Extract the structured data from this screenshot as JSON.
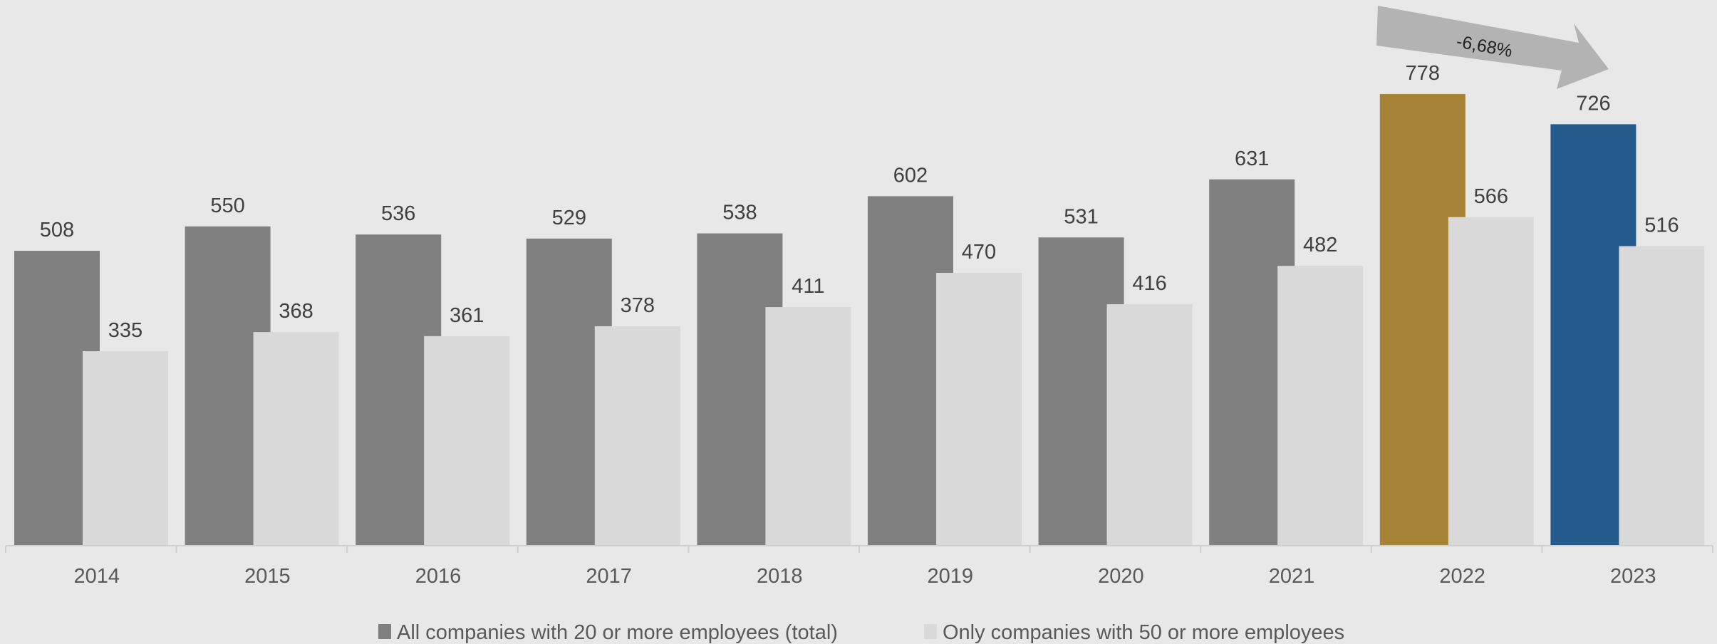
{
  "chart_data": {
    "type": "bar",
    "title": "",
    "xlabel": "",
    "ylabel": "",
    "ylim": [
      0,
      940
    ],
    "grid": false,
    "legend_position": "bottom",
    "categories": [
      "2014",
      "2015",
      "2016",
      "2017",
      "2018",
      "2019",
      "2020",
      "2021",
      "2022",
      "2023"
    ],
    "series": [
      {
        "name": "All companies with 20 or more employees (total)",
        "values": [
          508,
          550,
          536,
          529,
          538,
          602,
          531,
          631,
          778,
          726
        ],
        "labels": [
          "508",
          "550",
          "536",
          "529",
          "538",
          "602",
          "531",
          "631",
          "778",
          "726"
        ],
        "color": "#808080",
        "highlight_colors": {
          "2022": "#a58236",
          "2023": "#245a8c"
        }
      },
      {
        "name": "Only companies with 50 or more employees",
        "values": [
          335,
          368,
          361,
          378,
          411,
          470,
          416,
          482,
          566,
          516
        ],
        "labels": [
          "335",
          "368",
          "361",
          "378",
          "411",
          "470",
          "416",
          "482",
          "566",
          "516"
        ],
        "color": "#d9d9d9"
      }
    ],
    "annotation": {
      "text": "-6,68%",
      "from": "2022",
      "to": "2023",
      "color": "#b3b3b3"
    }
  }
}
